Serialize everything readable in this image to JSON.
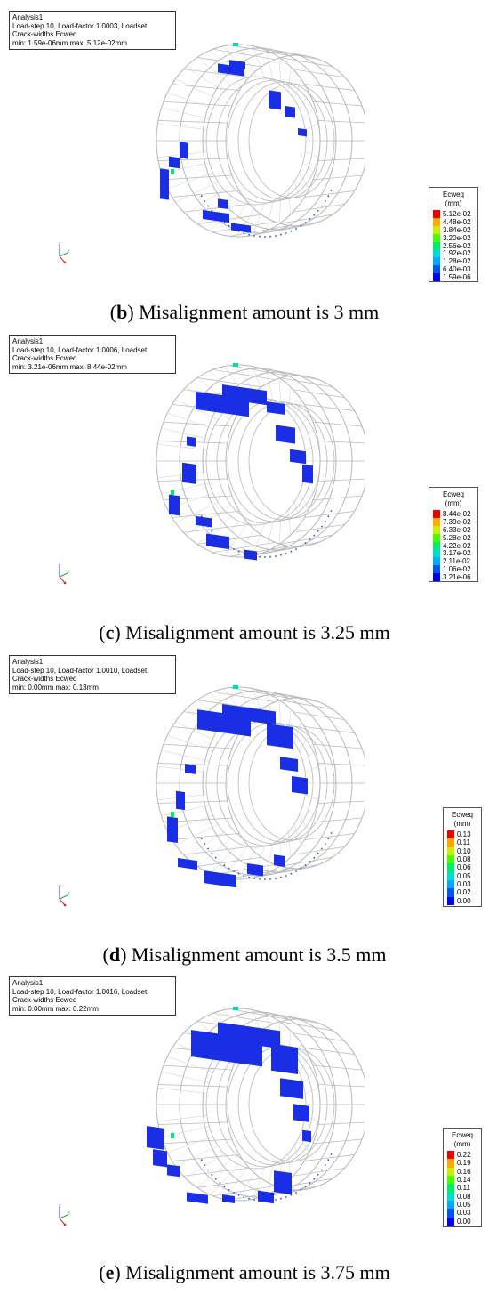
{
  "colors": {
    "scale": [
      "#0000ff",
      "#0055ff",
      "#00aaff",
      "#00ddcc",
      "#00ee66",
      "#44ff00",
      "#ccee00",
      "#ffaa00",
      "#ee0000"
    ],
    "crack_fill": "#1a2ee6",
    "wire": "#b8b8b8",
    "node": "#2b4fd6"
  },
  "panels": [
    {
      "info": [
        "Analysis1",
        "Load-step 10, Load-factor 1.0003, Loadset",
        "Crack-widths Ecweq",
        "min: 1.59e-06mm max: 5.12e-02mm"
      ],
      "legend": {
        "title1": "Ecweq",
        "title2": "(mm)",
        "ticks": [
          "5.12e-02",
          "4.48e-02",
          "3.84e-02",
          "3.20e-02",
          "2.56e-02",
          "1.92e-02",
          "1.28e-02",
          "6.40e-03",
          "1.59e-06"
        ]
      },
      "caption": {
        "open": "(",
        "letter": "b",
        "rest": ") Misalignment amount is 3 mm"
      }
    },
    {
      "info": [
        "Analysis1",
        "Load-step 10, Load-factor 1.0006, Loadset",
        "Crack-widths Ecweq",
        "min: 3.21e-06mm max: 8.44e-02mm"
      ],
      "legend": {
        "title1": "Ecweq",
        "title2": "(mm)",
        "ticks": [
          "8.44e-02",
          "7.39e-02",
          "6.33e-02",
          "5.28e-02",
          "4.22e-02",
          "3.17e-02",
          "2.11e-02",
          "1.06e-02",
          "3.21e-06"
        ]
      },
      "caption": {
        "open": "(",
        "letter": "c",
        "rest": ") Misalignment amount is 3.25 mm"
      }
    },
    {
      "info": [
        "Analysis1",
        "Load-step 10, Load-factor 1.0010, Loadset",
        "Crack-widths Ecweq",
        "min: 0.00mm max: 0.13mm"
      ],
      "legend": {
        "title1": "Ecweq",
        "title2": "(mm)",
        "ticks": [
          "0.13",
          "0.11",
          "0.10",
          "0.08",
          "0.06",
          "0.05",
          "0.03",
          "0.02",
          "0.00"
        ]
      },
      "caption": {
        "open": "(",
        "letter": "d",
        "rest": ") Misalignment amount is 3.5 mm"
      }
    },
    {
      "info": [
        "Analysis1",
        "Load-step 10, Load-factor 1.0016, Loadset",
        "Crack-widths Ecweq",
        "min: 0.00mm max: 0.22mm"
      ],
      "legend": {
        "title1": "Ecweq",
        "title2": "(mm)",
        "ticks": [
          "0.22",
          "0.19",
          "0.16",
          "0.14",
          "0.11",
          "0.08",
          "0.05",
          "0.03",
          "0.00"
        ]
      },
      "caption": {
        "open": "(",
        "letter": "e",
        "rest": ") Misalignment amount is 3.75 mm"
      }
    }
  ]
}
